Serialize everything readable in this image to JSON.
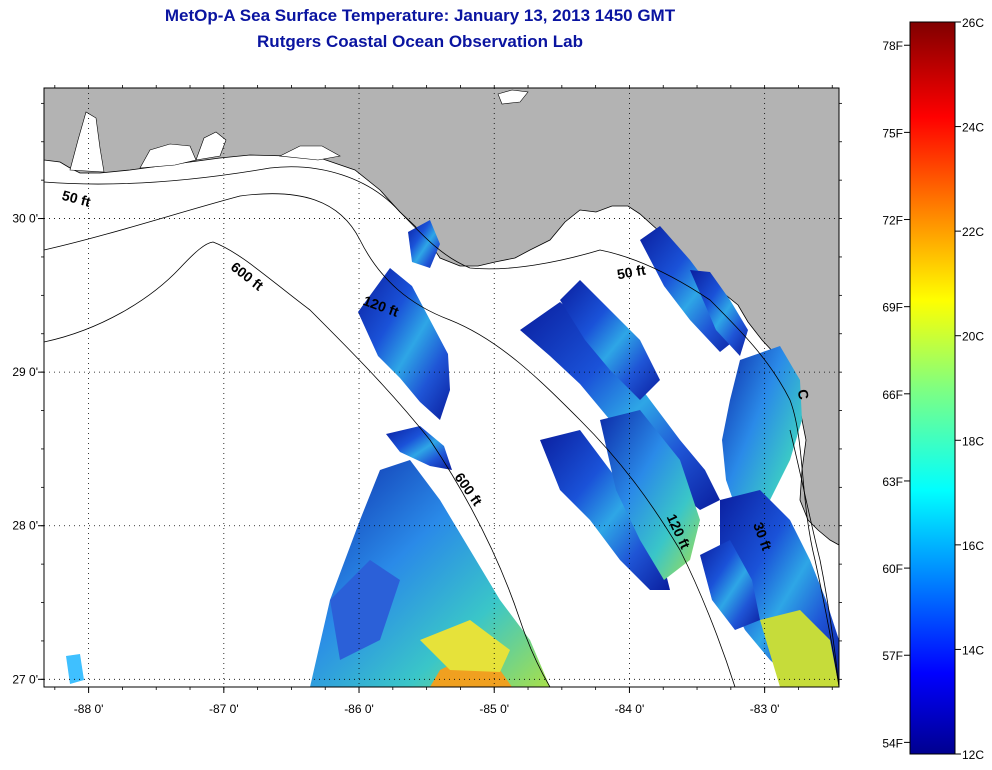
{
  "title": "MetOp-A Sea Surface Temperature:  January 13, 2013 1450 GMT",
  "subtitle": "Rutgers Coastal Ocean Observation Lab",
  "map": {
    "lon_range": [
      -88.33,
      -82.45
    ],
    "lat_range": [
      26.95,
      30.85
    ],
    "lon_ticks": [
      -88,
      -87,
      -86,
      -85,
      -84,
      -83
    ],
    "lon_labels": [
      "-88 0'",
      "-87 0'",
      "-86 0'",
      "-85 0'",
      "-84 0'",
      "-83 0'"
    ],
    "lat_ticks": [
      27,
      28,
      29,
      30
    ],
    "lat_labels": [
      "27 0'",
      "28 0'",
      "29 0'",
      "30 0'"
    ],
    "grid": true,
    "land_color": "#b3b3b3",
    "water_color": "#ffffff",
    "contour_labels": [
      {
        "text": "50 ft",
        "lon": -88.1,
        "lat": 30.1,
        "rot": 15
      },
      {
        "text": "600 ft",
        "lon": -86.85,
        "lat": 29.6,
        "rot": 38
      },
      {
        "text": "120 ft",
        "lon": -85.85,
        "lat": 29.4,
        "rot": 20
      },
      {
        "text": "50 ft",
        "lon": -83.98,
        "lat": 29.62,
        "rot": -10
      },
      {
        "text": "600 ft",
        "lon": -85.22,
        "lat": 28.22,
        "rot": 55
      },
      {
        "text": "120 ft",
        "lon": -83.67,
        "lat": 27.95,
        "rot": 65
      },
      {
        "text": "30 ft",
        "lon": -83.05,
        "lat": 27.92,
        "rot": 70
      },
      {
        "text": "C",
        "lon": -82.75,
        "lat": 28.85,
        "rot": 80
      }
    ]
  },
  "colorbar": {
    "colormap": "jet",
    "celsius_range": [
      12,
      26
    ],
    "celsius_labels": [
      "26C",
      "24C",
      "22C",
      "20C",
      "18C",
      "16C",
      "14C",
      "12C"
    ],
    "fahrenheit_labels": [
      "78F",
      "75F",
      "72F",
      "69F",
      "66F",
      "63F",
      "60F",
      "57F",
      "54F"
    ],
    "fahrenheit_values": [
      78,
      75,
      72,
      69,
      66,
      63,
      60,
      57,
      54
    ]
  }
}
